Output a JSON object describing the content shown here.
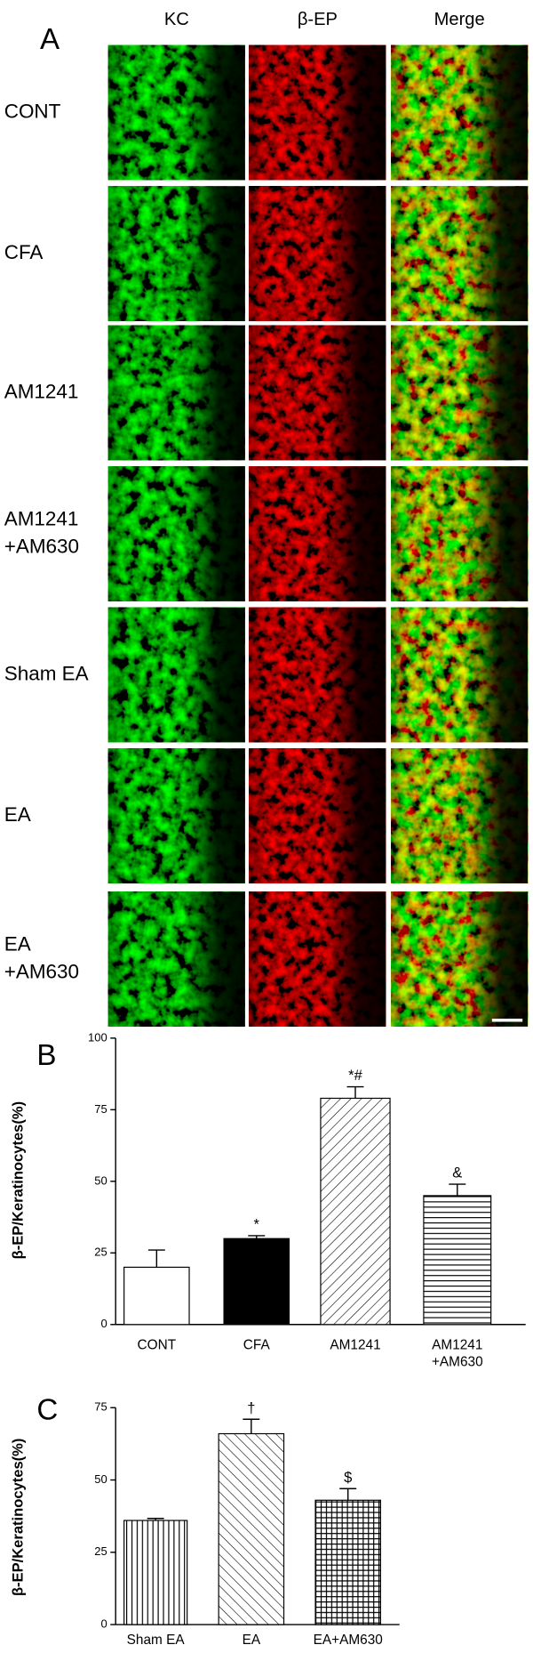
{
  "panel_a": {
    "label": "A",
    "columns": [
      "KC",
      "β-EP",
      "Merge"
    ],
    "rows": [
      [
        "CONT"
      ],
      [
        "CFA"
      ],
      [
        "AM1241"
      ],
      [
        "AM1241",
        "+AM630"
      ],
      [
        "Sham EA"
      ],
      [
        "EA"
      ],
      [
        "EA",
        "+AM630"
      ]
    ]
  },
  "chart_data": [
    {
      "type": "bar",
      "panel": "B",
      "y_label": "β-EP/Keratinocytes(%)",
      "categories": [
        [
          "CONT"
        ],
        [
          "CFA"
        ],
        [
          "AM1241"
        ],
        [
          "AM1241",
          "+AM630"
        ]
      ],
      "values": [
        20,
        30,
        79,
        45
      ],
      "errors": [
        6,
        1,
        4,
        4
      ],
      "annotations": [
        null,
        "*",
        "*#",
        "&"
      ],
      "patterns": [
        "none",
        "solid",
        "diagonal-up",
        "horizontal"
      ],
      "ylim": [
        0,
        100
      ],
      "yticks": [
        0,
        25,
        50,
        75,
        100
      ]
    },
    {
      "type": "bar",
      "panel": "C",
      "y_label": "β-EP/Keratinocytes(%)",
      "categories": [
        [
          "Sham EA"
        ],
        [
          "EA"
        ],
        [
          "EA+AM630"
        ]
      ],
      "values": [
        36,
        66,
        43
      ],
      "errors": [
        0.7,
        5,
        4
      ],
      "annotations": [
        null,
        "†",
        "$"
      ],
      "patterns": [
        "vertical",
        "diagonal-down",
        "grid"
      ],
      "ylim": [
        0,
        75
      ],
      "yticks": [
        0,
        25,
        50,
        75
      ]
    }
  ]
}
